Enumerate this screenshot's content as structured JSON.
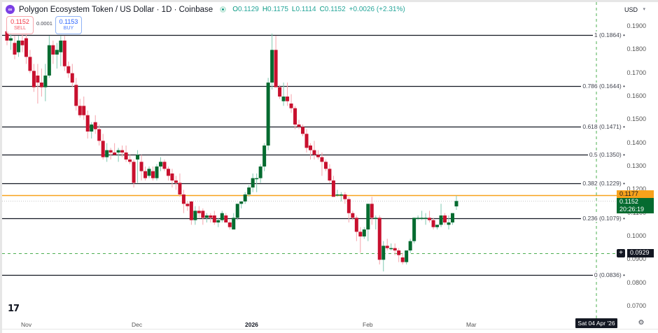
{
  "header": {
    "title": "Polygon Ecosystem Token / US Dollar · 1D · Coinbase",
    "logo_icon": "polygon-logo-icon",
    "ohlc": [
      {
        "key": "O",
        "value": "0.1129"
      },
      {
        "key": "H",
        "value": "0.1175"
      },
      {
        "key": "L",
        "value": "0.1114"
      },
      {
        "key": "C",
        "value": "0.1152"
      }
    ],
    "change": "+0.0026 (+2.31%)"
  },
  "trade": {
    "sell_price": "0.1152",
    "sell_label": "SELL",
    "spread": "0.0001",
    "buy_price": "0.1153",
    "buy_label": "BUY"
  },
  "currency": {
    "label": "USD",
    "chevron": "▾"
  },
  "price_axis": [
    "0.1900",
    "0.1800",
    "0.1700",
    "0.1600",
    "0.1500",
    "0.1400",
    "0.1300",
    "0.1200",
    "0.1100",
    "0.1000",
    "0.0900",
    "0.0800",
    "0.0700"
  ],
  "time_axis": [
    {
      "label": "Nov",
      "x": 30,
      "bold": false
    },
    {
      "label": "Dec",
      "x": 188,
      "bold": false
    },
    {
      "label": "2026",
      "x": 350,
      "bold": true
    },
    {
      "label": "Feb",
      "x": 518,
      "bold": false
    },
    {
      "label": "Mar",
      "x": 666,
      "bold": false
    }
  ],
  "tags": {
    "alert_price": "0.1177",
    "last_price": "0.1152",
    "countdown": "20:26:19",
    "crosshair_price": "0.0929",
    "crosshair_plus": "+",
    "crosshair_date": "Sat 04 Apr '26",
    "settings_icon": "⚙",
    "tv_logo": "TV"
  },
  "colors": {
    "up": "#056b30",
    "down": "#c8102e",
    "up_wick": "#7fc8b0",
    "down_wick": "#f5a3ab",
    "fib_line": "#131722",
    "alert_line": "#f7a21b",
    "crosshair": "#4caf50"
  },
  "chart_data": {
    "type": "candlestick",
    "title": "Polygon Ecosystem Token / US Dollar · 1D · Coinbase",
    "xlabel": "",
    "ylabel": "USD",
    "ylim": [
      0.065,
      0.195
    ],
    "x_ticks": [
      "Nov",
      "Dec",
      "2026",
      "Feb",
      "Mar"
    ],
    "y_ticks": [
      0.19,
      0.18,
      0.17,
      0.16,
      0.15,
      0.14,
      0.13,
      0.12,
      0.11,
      0.1,
      0.09,
      0.08,
      0.07
    ],
    "fibonacci": [
      {
        "level": "1",
        "price": 0.1864
      },
      {
        "level": "0.786",
        "price": 0.1644
      },
      {
        "level": "0.618",
        "price": 0.1471
      },
      {
        "level": "0.5",
        "price": 0.135
      },
      {
        "level": "0.382",
        "price": 0.1229
      },
      {
        "level": "0.236",
        "price": 0.1079
      },
      {
        "level": "0",
        "price": 0.0836
      }
    ],
    "horizontal_lines": [
      {
        "name": "alert",
        "price": 0.1177,
        "color": "#f7a21b"
      },
      {
        "name": "crosshair",
        "price": 0.0929,
        "color": "#4caf50"
      }
    ],
    "last": {
      "open": 0.1129,
      "high": 0.1175,
      "low": 0.1114,
      "close": 0.1152,
      "change": 0.0026,
      "change_pct": 2.31
    },
    "candles": [
      [
        0.188,
        0.19,
        0.182,
        0.184
      ],
      [
        0.184,
        0.188,
        0.18,
        0.185
      ],
      [
        0.183,
        0.186,
        0.176,
        0.178
      ],
      [
        0.179,
        0.186,
        0.177,
        0.184
      ],
      [
        0.184,
        0.187,
        0.179,
        0.182
      ],
      [
        0.185,
        0.188,
        0.174,
        0.177
      ],
      [
        0.177,
        0.18,
        0.17,
        0.171
      ],
      [
        0.171,
        0.174,
        0.162,
        0.164
      ],
      [
        0.169,
        0.174,
        0.157,
        0.166
      ],
      [
        0.166,
        0.172,
        0.16,
        0.164
      ],
      [
        0.164,
        0.174,
        0.158,
        0.169
      ],
      [
        0.169,
        0.186,
        0.168,
        0.182
      ],
      [
        0.182,
        0.184,
        0.174,
        0.178
      ],
      [
        0.178,
        0.183,
        0.172,
        0.18
      ],
      [
        0.179,
        0.186,
        0.173,
        0.184
      ],
      [
        0.184,
        0.186,
        0.171,
        0.173
      ],
      [
        0.173,
        0.175,
        0.168,
        0.17
      ],
      [
        0.17,
        0.174,
        0.164,
        0.166
      ],
      [
        0.165,
        0.168,
        0.154,
        0.156
      ],
      [
        0.156,
        0.159,
        0.151,
        0.152
      ],
      [
        0.156,
        0.16,
        0.15,
        0.152
      ],
      [
        0.152,
        0.154,
        0.142,
        0.145
      ],
      [
        0.145,
        0.149,
        0.142,
        0.148
      ],
      [
        0.149,
        0.152,
        0.144,
        0.146
      ],
      [
        0.146,
        0.148,
        0.139,
        0.141
      ],
      [
        0.141,
        0.144,
        0.133,
        0.134
      ],
      [
        0.134,
        0.14,
        0.132,
        0.137
      ],
      [
        0.137,
        0.138,
        0.133,
        0.136
      ],
      [
        0.136,
        0.14,
        0.135,
        0.135
      ],
      [
        0.136,
        0.138,
        0.132,
        0.137
      ],
      [
        0.137,
        0.139,
        0.134,
        0.136
      ],
      [
        0.136,
        0.139,
        0.132,
        0.133
      ],
      [
        0.133,
        0.135,
        0.131,
        0.132
      ],
      [
        0.132,
        0.133,
        0.121,
        0.123
      ],
      [
        0.133,
        0.137,
        0.123,
        0.135
      ],
      [
        0.132,
        0.135,
        0.124,
        0.128
      ],
      [
        0.128,
        0.13,
        0.124,
        0.125
      ],
      [
        0.126,
        0.13,
        0.125,
        0.129
      ],
      [
        0.128,
        0.13,
        0.124,
        0.125
      ],
      [
        0.125,
        0.131,
        0.124,
        0.13
      ],
      [
        0.13,
        0.134,
        0.128,
        0.132
      ],
      [
        0.132,
        0.133,
        0.128,
        0.129
      ],
      [
        0.129,
        0.13,
        0.124,
        0.126
      ],
      [
        0.127,
        0.129,
        0.121,
        0.124
      ],
      [
        0.124,
        0.126,
        0.12,
        0.123
      ],
      [
        0.123,
        0.127,
        0.117,
        0.118
      ],
      [
        0.118,
        0.12,
        0.11,
        0.114
      ],
      [
        0.114,
        0.115,
        0.111,
        0.113
      ],
      [
        0.115,
        0.115,
        0.105,
        0.107
      ],
      [
        0.107,
        0.113,
        0.105,
        0.111
      ],
      [
        0.111,
        0.113,
        0.108,
        0.11
      ],
      [
        0.111,
        0.112,
        0.105,
        0.108
      ],
      [
        0.108,
        0.11,
        0.106,
        0.109
      ],
      [
        0.109,
        0.11,
        0.106,
        0.108
      ],
      [
        0.109,
        0.111,
        0.105,
        0.106
      ],
      [
        0.106,
        0.108,
        0.104,
        0.107
      ],
      [
        0.107,
        0.111,
        0.106,
        0.11
      ],
      [
        0.109,
        0.11,
        0.106,
        0.106
      ],
      [
        0.106,
        0.107,
        0.103,
        0.104
      ],
      [
        0.103,
        0.11,
        0.103,
        0.108
      ],
      [
        0.108,
        0.114,
        0.107,
        0.114
      ],
      [
        0.114,
        0.115,
        0.112,
        0.115
      ],
      [
        0.115,
        0.119,
        0.114,
        0.118
      ],
      [
        0.118,
        0.122,
        0.117,
        0.121
      ],
      [
        0.121,
        0.127,
        0.119,
        0.125
      ],
      [
        0.125,
        0.127,
        0.119,
        0.125
      ],
      [
        0.125,
        0.131,
        0.123,
        0.13
      ],
      [
        0.13,
        0.14,
        0.128,
        0.139
      ],
      [
        0.139,
        0.168,
        0.137,
        0.166
      ],
      [
        0.166,
        0.187,
        0.163,
        0.18
      ],
      [
        0.18,
        0.186,
        0.164,
        0.164
      ],
      [
        0.164,
        0.165,
        0.159,
        0.16
      ],
      [
        0.158,
        0.166,
        0.156,
        0.16
      ],
      [
        0.16,
        0.166,
        0.156,
        0.158
      ],
      [
        0.157,
        0.161,
        0.153,
        0.155
      ],
      [
        0.155,
        0.156,
        0.146,
        0.148
      ],
      [
        0.148,
        0.15,
        0.146,
        0.147
      ],
      [
        0.147,
        0.148,
        0.143,
        0.144
      ],
      [
        0.144,
        0.146,
        0.136,
        0.138
      ],
      [
        0.139,
        0.14,
        0.133,
        0.137
      ],
      [
        0.137,
        0.141,
        0.133,
        0.135
      ],
      [
        0.135,
        0.137,
        0.133,
        0.134
      ],
      [
        0.134,
        0.136,
        0.126,
        0.132
      ],
      [
        0.132,
        0.133,
        0.128,
        0.129
      ],
      [
        0.129,
        0.131,
        0.123,
        0.124
      ],
      [
        0.124,
        0.126,
        0.117,
        0.117
      ],
      [
        0.118,
        0.12,
        0.117,
        0.118
      ],
      [
        0.118,
        0.119,
        0.115,
        0.118
      ],
      [
        0.118,
        0.119,
        0.114,
        0.116
      ],
      [
        0.116,
        0.117,
        0.106,
        0.11
      ],
      [
        0.11,
        0.111,
        0.107,
        0.108
      ],
      [
        0.108,
        0.109,
        0.098,
        0.102
      ],
      [
        0.102,
        0.104,
        0.093,
        0.1
      ],
      [
        0.1,
        0.104,
        0.099,
        0.103
      ],
      [
        0.103,
        0.11,
        0.098,
        0.114
      ],
      [
        0.114,
        0.117,
        0.105,
        0.108
      ],
      [
        0.108,
        0.109,
        0.103,
        0.108
      ],
      [
        0.108,
        0.109,
        0.088,
        0.09
      ],
      [
        0.09,
        0.098,
        0.085,
        0.096
      ],
      [
        0.096,
        0.099,
        0.094,
        0.095
      ],
      [
        0.095,
        0.097,
        0.094,
        0.095
      ],
      [
        0.095,
        0.097,
        0.092,
        0.094
      ],
      [
        0.094,
        0.095,
        0.089,
        0.092
      ],
      [
        0.091,
        0.093,
        0.088,
        0.089
      ],
      [
        0.089,
        0.094,
        0.088,
        0.094
      ],
      [
        0.094,
        0.099,
        0.093,
        0.098
      ],
      [
        0.098,
        0.108,
        0.097,
        0.108
      ],
      [
        0.108,
        0.109,
        0.107,
        0.108
      ],
      [
        0.108,
        0.111,
        0.107,
        0.108
      ],
      [
        0.108,
        0.11,
        0.105,
        0.108
      ],
      [
        0.108,
        0.111,
        0.106,
        0.107
      ],
      [
        0.107,
        0.108,
        0.103,
        0.104
      ],
      [
        0.104,
        0.105,
        0.103,
        0.105
      ],
      [
        0.105,
        0.114,
        0.104,
        0.109
      ],
      [
        0.109,
        0.11,
        0.105,
        0.106
      ],
      [
        0.105,
        0.109,
        0.103,
        0.106
      ],
      [
        0.106,
        0.11,
        0.105,
        0.11
      ],
      [
        0.1129,
        0.1175,
        0.1114,
        0.1152
      ]
    ]
  }
}
